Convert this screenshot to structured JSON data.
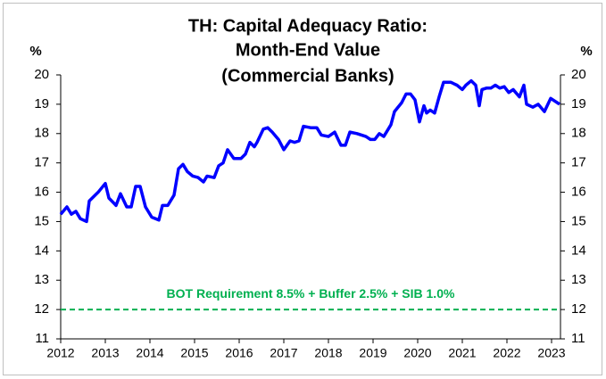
{
  "chart_data": {
    "type": "line",
    "title": [
      "TH: Capital Adequacy Ratio:",
      "Month-End Value",
      "(Commercial Banks)"
    ],
    "y_label": "%",
    "y2_label": "%",
    "xlim": [
      2012,
      2023.2
    ],
    "xticks": [
      2012,
      2013,
      2014,
      2015,
      2016,
      2017,
      2018,
      2019,
      2020,
      2021,
      2022,
      2023
    ],
    "ylim": [
      11,
      20
    ],
    "yticks": [
      11,
      12,
      13,
      14,
      15,
      16,
      17,
      18,
      19,
      20
    ],
    "y2lim": [
      11,
      20
    ],
    "y2ticks": [
      11,
      12,
      13,
      14,
      15,
      16,
      17,
      18,
      19,
      20
    ],
    "series": [
      {
        "color": "#0000ff",
        "x": [
          2012.0,
          2012.14,
          2012.24,
          2012.34,
          2012.44,
          2012.58,
          2012.64,
          2012.84,
          2013.0,
          2013.08,
          2013.24,
          2013.34,
          2013.48,
          2013.58,
          2013.68,
          2013.78,
          2013.9,
          2014.04,
          2014.2,
          2014.28,
          2014.4,
          2014.54,
          2014.64,
          2014.74,
          2014.84,
          2014.96,
          2015.08,
          2015.2,
          2015.28,
          2015.44,
          2015.54,
          2015.64,
          2015.74,
          2015.88,
          2016.04,
          2016.14,
          2016.24,
          2016.34,
          2016.4,
          2016.54,
          2016.64,
          2016.74,
          2016.88,
          2017.0,
          2017.14,
          2017.24,
          2017.34,
          2017.44,
          2017.6,
          2017.74,
          2017.84,
          2018.0,
          2018.14,
          2018.28,
          2018.38,
          2018.48,
          2018.64,
          2018.84,
          2018.94,
          2019.04,
          2019.14,
          2019.24,
          2019.4,
          2019.48,
          2019.64,
          2019.74,
          2019.84,
          2019.94,
          2020.04,
          2020.14,
          2020.2,
          2020.28,
          2020.38,
          2020.48,
          2020.58,
          2020.74,
          2020.88,
          2021.0,
          2021.08,
          2021.2,
          2021.3,
          2021.38,
          2021.44,
          2021.54,
          2021.64,
          2021.74,
          2021.84,
          2021.94,
          2022.04,
          2022.14,
          2022.28,
          2022.38,
          2022.44,
          2022.58,
          2022.7,
          2022.84,
          2022.98,
          2023.18
        ],
        "values": [
          15.25,
          15.5,
          15.25,
          15.35,
          15.1,
          15.0,
          15.7,
          16.0,
          16.3,
          15.8,
          15.55,
          15.95,
          15.5,
          15.5,
          16.2,
          16.2,
          15.5,
          15.15,
          15.05,
          15.55,
          15.55,
          15.9,
          16.8,
          16.95,
          16.7,
          16.55,
          16.5,
          16.35,
          16.55,
          16.5,
          16.9,
          17.0,
          17.45,
          17.15,
          17.15,
          17.3,
          17.7,
          17.55,
          17.7,
          18.15,
          18.2,
          18.05,
          17.8,
          17.45,
          17.75,
          17.7,
          17.75,
          18.25,
          18.2,
          18.2,
          17.95,
          17.9,
          18.05,
          17.6,
          17.6,
          18.05,
          18.0,
          17.9,
          17.8,
          17.8,
          18.0,
          17.9,
          18.3,
          18.75,
          19.05,
          19.35,
          19.35,
          19.15,
          18.4,
          18.95,
          18.7,
          18.8,
          18.7,
          19.25,
          19.75,
          19.75,
          19.65,
          19.5,
          19.65,
          19.8,
          19.65,
          18.95,
          19.5,
          19.55,
          19.55,
          19.65,
          19.55,
          19.6,
          19.4,
          19.5,
          19.25,
          19.65,
          19.0,
          18.9,
          19.0,
          18.75,
          19.2,
          19.0
        ]
      }
    ],
    "reference_lines": [
      {
        "value": 12,
        "label": "BOT Requirement 8.5% + Buffer 2.5% + SIB 1.0%",
        "color": "#00b050"
      }
    ]
  }
}
